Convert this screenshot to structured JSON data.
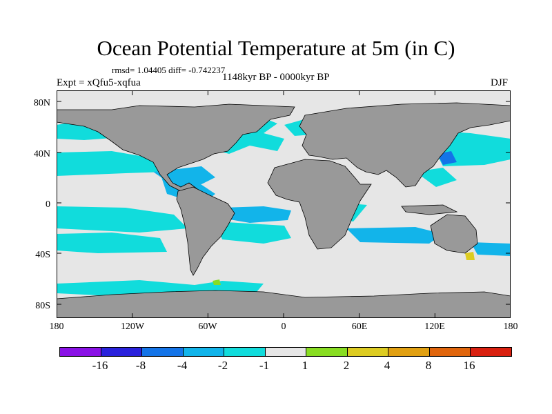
{
  "title": "Ocean Potential Temperature at 5m (in C)",
  "stats": "rmsd= 1.04405 diff= -0.742237",
  "experiment": "Expt = xQfu5-xqfua",
  "period": "1148kyr BP - 0000kyr BP",
  "season": "DJF",
  "map": {
    "lat_labels": [
      "80N",
      "40N",
      "0",
      "40S",
      "80S"
    ],
    "lon_labels": [
      "180",
      "120W",
      "60W",
      "0",
      "60E",
      "120E",
      "180"
    ],
    "colors": {
      "land": "#999999",
      "ocean_neutral": "#e6e6e6",
      "anomaly_m2_m1": "#11dcdc",
      "anomaly_m4_m2": "#12b4ea",
      "anomaly_m8_m4": "#1474e8",
      "anomaly_p1_p2": "#88dd22",
      "anomaly_p2_p4": "#ddcc22"
    }
  },
  "colorbar": {
    "labels": [
      "-16",
      "-8",
      "-4",
      "-2",
      "-1",
      "1",
      "2",
      "4",
      "8",
      "16"
    ],
    "colors": [
      "#8a12e6",
      "#2a22dc",
      "#1474e8",
      "#12b4ea",
      "#11dcdc",
      "#e6e6e6",
      "#88dd22",
      "#ddcc22",
      "#e1a012",
      "#e0650c",
      "#d92010"
    ]
  }
}
